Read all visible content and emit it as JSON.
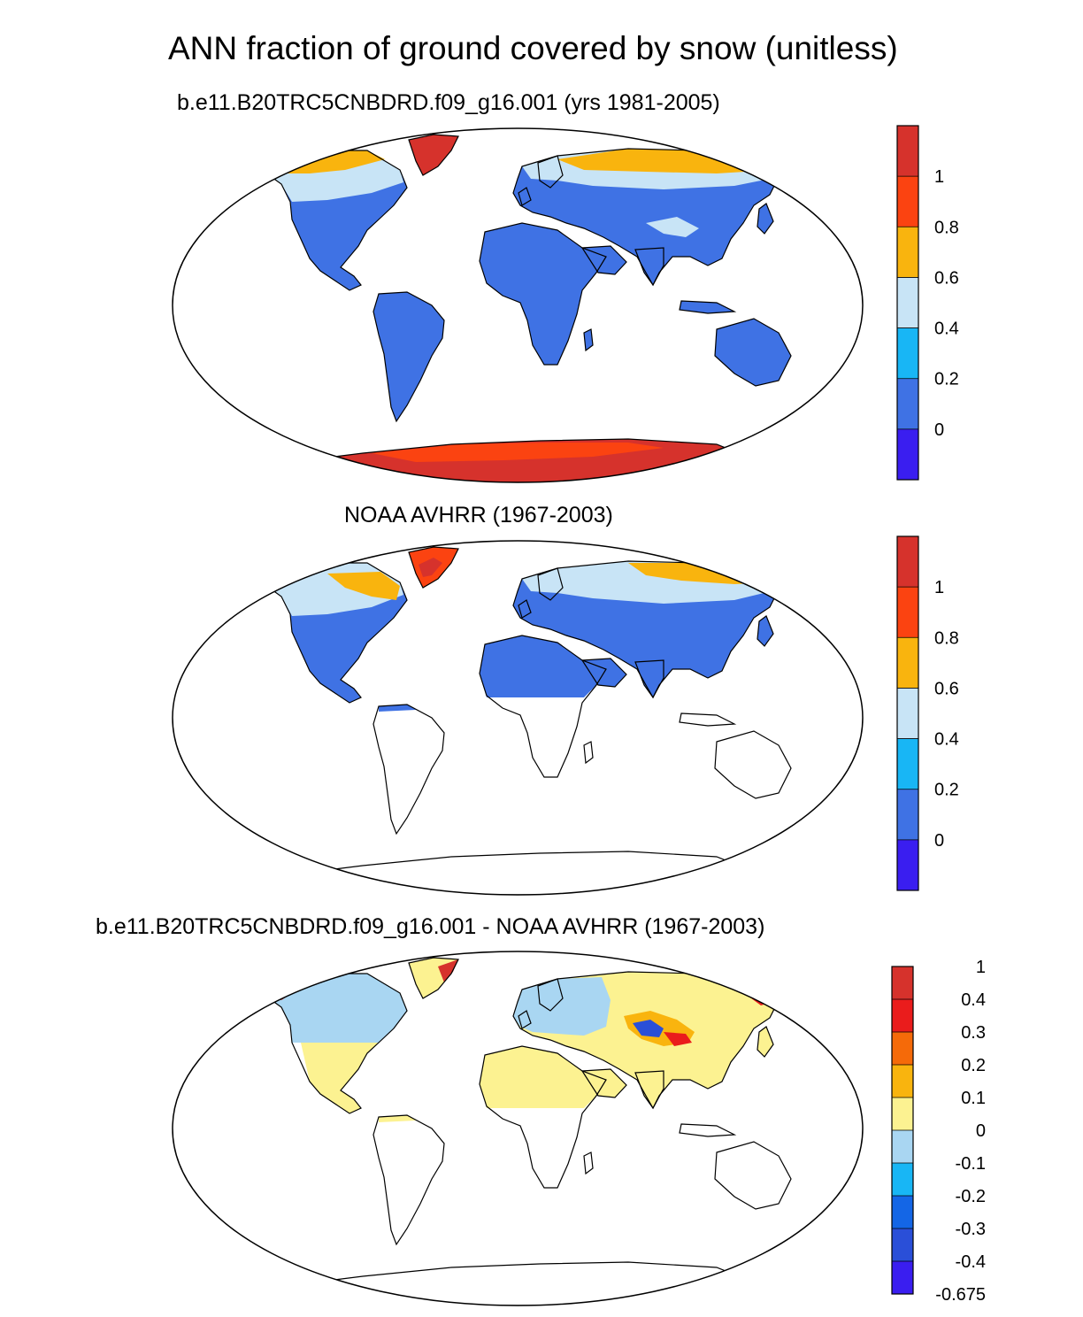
{
  "title": "ANN fraction of ground covered by snow (unitless)",
  "panels": [
    {
      "id": "model",
      "subtitle": "b.e11.B20TRC5CNBDRD.f09_g16.001 (yrs 1981-2005)",
      "colorbar": {
        "colors": [
          "#3a1ef0",
          "#3f72e4",
          "#18b6f5",
          "#c8e4f6",
          "#f9b40e",
          "#fb4311",
          "#d6322c"
        ],
        "labels": [
          "0",
          "0.2",
          "0.4",
          "0.6",
          "0.8",
          "1"
        ]
      }
    },
    {
      "id": "obs",
      "subtitle": "NOAA AVHRR (1967-2003)",
      "colorbar": {
        "colors": [
          "#3a1ef0",
          "#3f72e4",
          "#18b6f5",
          "#c8e4f6",
          "#f9b40e",
          "#fb4311",
          "#d6322c"
        ],
        "labels": [
          "0",
          "0.2",
          "0.4",
          "0.6",
          "0.8",
          "1"
        ]
      }
    },
    {
      "id": "diff",
      "subtitle": "b.e11.B20TRC5CNBDRD.f09_g16.001 - NOAA AVHRR (1967-2003)",
      "colorbar": {
        "colors": [
          "#3a1ef0",
          "#2a4fd8",
          "#1466e6",
          "#18b6f5",
          "#a9d6f2",
          "#fcf291",
          "#f9b40e",
          "#f56a09",
          "#ea1c1c",
          "#d6322c"
        ],
        "labels": [
          "-0.675",
          "-0.4",
          "-0.3",
          "-0.2",
          "-0.1",
          "0",
          "0.1",
          "0.2",
          "0.3",
          "0.4",
          "1"
        ]
      }
    }
  ]
}
